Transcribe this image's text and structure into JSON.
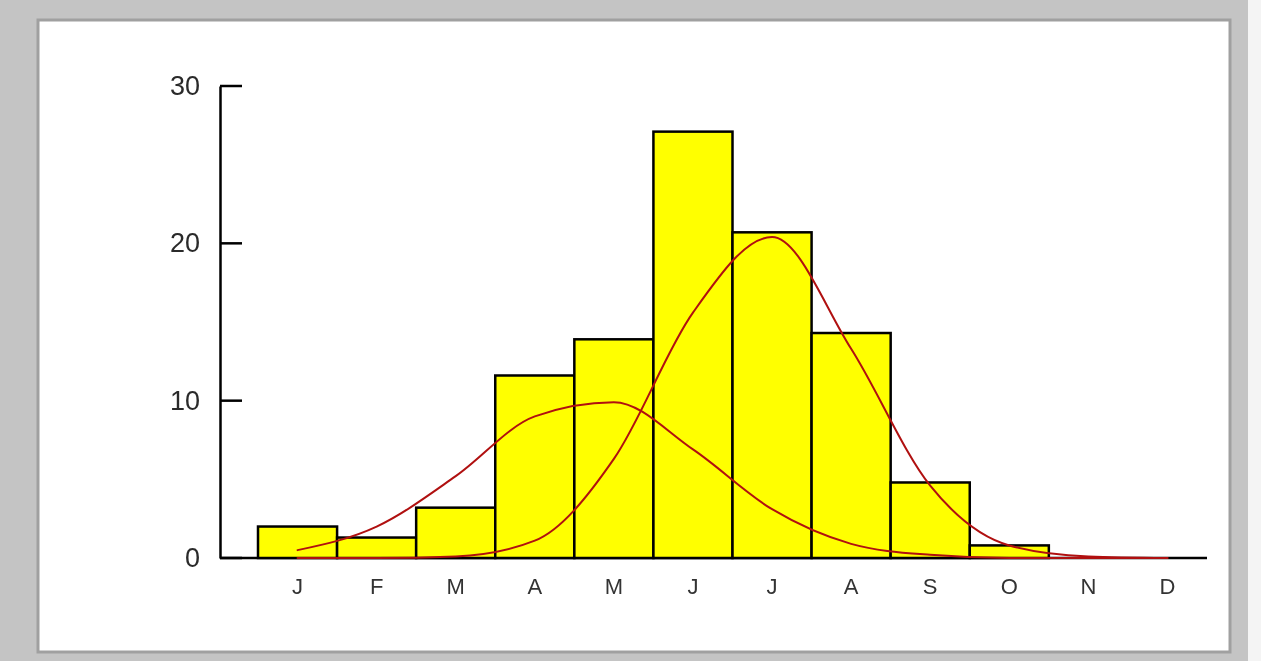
{
  "chart_data": {
    "type": "bar",
    "categories": [
      "J",
      "F",
      "M",
      "A",
      "M",
      "J",
      "J",
      "A",
      "S",
      "O",
      "N",
      "D"
    ],
    "series": [
      {
        "color": "#ffff00",
        "values": [
          2.0,
          1.3,
          3.2,
          11.6,
          13.9,
          27.1,
          20.7,
          14.3,
          4.8,
          0.8,
          null,
          null
        ]
      },
      {
        "type": "line",
        "color": "#b01010",
        "values": [
          0.5,
          2.0,
          5.2,
          9.0,
          9.9,
          6.9,
          3.1,
          0.9,
          0.2,
          0.0,
          0.0,
          0.0
        ]
      },
      {
        "type": "line",
        "color": "#b01010",
        "values": [
          0.0,
          0.0,
          0.1,
          1.1,
          6.3,
          15.6,
          20.4,
          13.3,
          4.6,
          0.8,
          0.1,
          0.0
        ]
      }
    ],
    "ylim": [
      0,
      30
    ],
    "yticks": [
      0,
      10,
      20,
      30
    ]
  }
}
